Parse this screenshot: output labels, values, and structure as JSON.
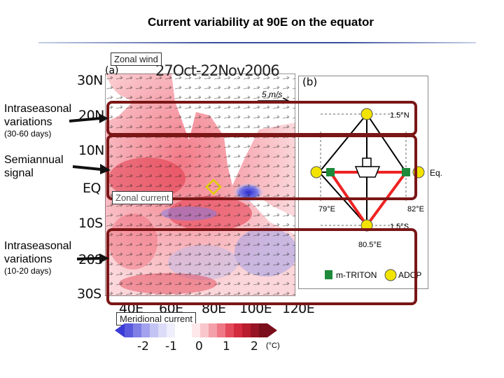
{
  "title": "Current variability at 90E on the equator",
  "map": {
    "panel_a": "(a)",
    "date_range": "27Oct-22Nov2006",
    "scale": "5 m/s",
    "lat_labels": [
      "30N",
      "20N",
      "10N",
      "EQ",
      "10S",
      "20S",
      "30S"
    ],
    "lon_labels": [
      "40E",
      "60E",
      "80E",
      "100E",
      "120E"
    ]
  },
  "labels": {
    "zonal_wind": "Zonal wind",
    "zonal_current": "Zonal current",
    "meridional_current": "Meridional current",
    "intraseasonal_1": "Intraseasonal variations",
    "intraseasonal_1_period": "(30-60 days)",
    "semiannual": "Semiannual signal",
    "intraseasonal_2": "Intraseasonal variations",
    "intraseasonal_2_period": "(10-20 days)"
  },
  "array": {
    "panel_b": "(b)",
    "north": "1.5°N",
    "eq": "Eq.",
    "south": "1.5°S",
    "west": "79°E",
    "east": "82°E",
    "center": "80.5°E",
    "legend_triton": "m-TRITON",
    "legend_adcp": "ADCP"
  },
  "colorbar": {
    "ticks": [
      "-2",
      "-1",
      "0",
      "1",
      "2"
    ],
    "unit": "(°C)"
  },
  "colors": {
    "highlight": "#7a1616",
    "arrow": "#111111",
    "triton": "#1f8a3a",
    "adcp": "#f2e400"
  }
}
